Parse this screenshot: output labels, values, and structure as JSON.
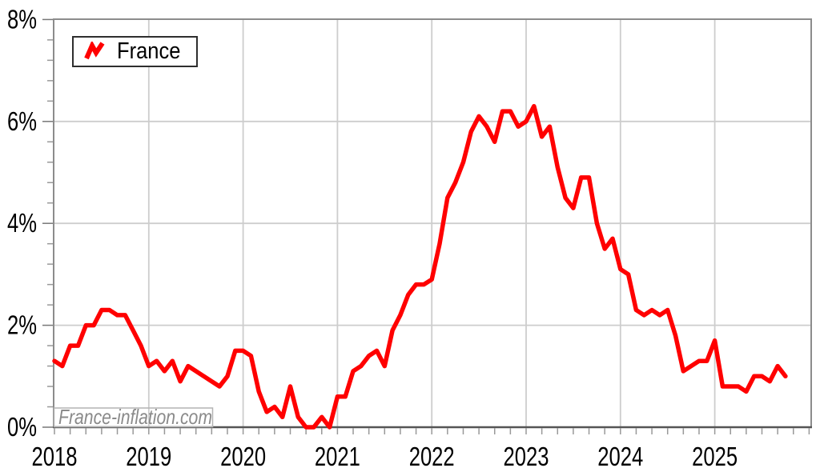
{
  "legend": {
    "label": "France",
    "position": "top-left"
  },
  "watermark": {
    "text": "France-inflation.com"
  },
  "colors": {
    "line": "#ff0000",
    "grid": "#cdcdcd",
    "frame": "#8c8c8c",
    "axis_bottom": "#555555",
    "tick": "#999999",
    "label": "#000000",
    "watermark_text": "#8a8a8a",
    "watermark_box": "#b3b3b3",
    "legend_border": "#2e2e2e"
  },
  "chart_data": {
    "type": "line",
    "title": "",
    "xlabel": "",
    "ylabel": "",
    "ylim": [
      0,
      8
    ],
    "y_tick_labels": [
      "0%",
      "2%",
      "4%",
      "6%",
      "8%"
    ],
    "y_major_step_pct": 2,
    "y_minor_step_pct": 0.4,
    "x_tick_labels": [
      "2018",
      "2019",
      "2020",
      "2021",
      "2022",
      "2023",
      "2024",
      "2025"
    ],
    "x_minor_step_months": 2,
    "grid": true,
    "legend_position": "top-left",
    "frequency": "monthly",
    "x_start": "2018-01",
    "x_end": "2025-10",
    "series": [
      {
        "name": "France",
        "color": "#ff0000",
        "values": [
          1.3,
          1.2,
          1.6,
          1.6,
          2.0,
          2.0,
          2.3,
          2.3,
          2.2,
          2.2,
          1.9,
          1.6,
          1.2,
          1.3,
          1.1,
          1.3,
          0.9,
          1.2,
          1.1,
          1.0,
          0.9,
          0.8,
          1.0,
          1.5,
          1.5,
          1.4,
          0.7,
          0.3,
          0.4,
          0.2,
          0.8,
          0.2,
          0.0,
          0.0,
          0.2,
          0.0,
          0.6,
          0.6,
          1.1,
          1.2,
          1.4,
          1.5,
          1.2,
          1.9,
          2.2,
          2.6,
          2.8,
          2.8,
          2.9,
          3.6,
          4.5,
          4.8,
          5.2,
          5.8,
          6.1,
          5.9,
          5.6,
          6.2,
          6.2,
          5.9,
          6.0,
          6.3,
          5.7,
          5.9,
          5.1,
          4.5,
          4.3,
          4.9,
          4.9,
          4.0,
          3.5,
          3.7,
          3.1,
          3.0,
          2.3,
          2.2,
          2.3,
          2.2,
          2.3,
          1.8,
          1.1,
          1.2,
          1.3,
          1.3,
          1.7,
          0.8,
          0.8,
          0.8,
          0.7,
          1.0,
          1.0,
          0.9,
          1.2,
          1.0
        ]
      }
    ]
  }
}
